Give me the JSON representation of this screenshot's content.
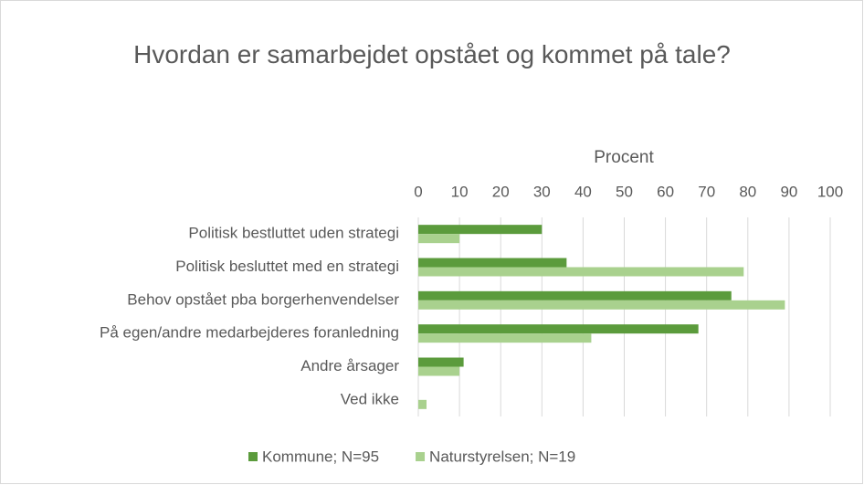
{
  "chart_data": {
    "type": "barh",
    "title": "Hvordan er samarbejdet opstået og kommet på tale?",
    "x_label": "Procent",
    "categories": [
      "Politisk bestluttet uden strategi",
      "Politisk besluttet med en strategi",
      "Behov opstået pba borgerhenvendelser",
      "På egen/andre medarbejderes foranledning",
      "Andre årsager",
      "Ved ikke"
    ],
    "series": [
      {
        "name": "Kommune; N=95",
        "color": "#5b9b3c",
        "values": [
          30,
          36,
          76,
          68,
          11,
          0
        ]
      },
      {
        "name": "Naturstyrelsen; N=19",
        "color": "#a9d18e",
        "values": [
          10,
          79,
          89,
          42,
          10,
          2
        ]
      }
    ],
    "xlim": [
      0,
      100
    ],
    "xticks": [
      0,
      10,
      20,
      30,
      40,
      50,
      60,
      70,
      80,
      90,
      100
    ],
    "grid": true,
    "legend": "bottom"
  }
}
